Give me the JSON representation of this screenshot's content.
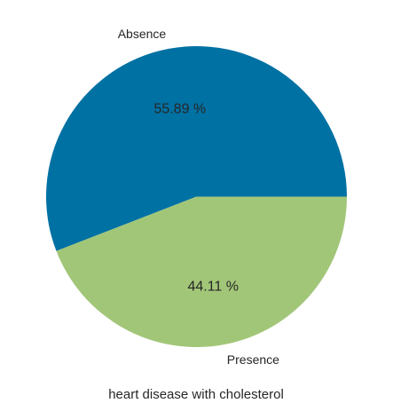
{
  "chart_data": {
    "type": "pie",
    "title": "",
    "xlabel": "heart disease with cholesterol",
    "slices": [
      {
        "label": "Absence",
        "value": 55.89,
        "pct_label": "55.89 %",
        "color": "#0071a3"
      },
      {
        "label": "Presence",
        "value": 44.11,
        "pct_label": "44.11 %",
        "color": "#a2c678"
      }
    ],
    "start_angle_deg": 0,
    "direction": "counterclockwise",
    "legend": "none"
  }
}
